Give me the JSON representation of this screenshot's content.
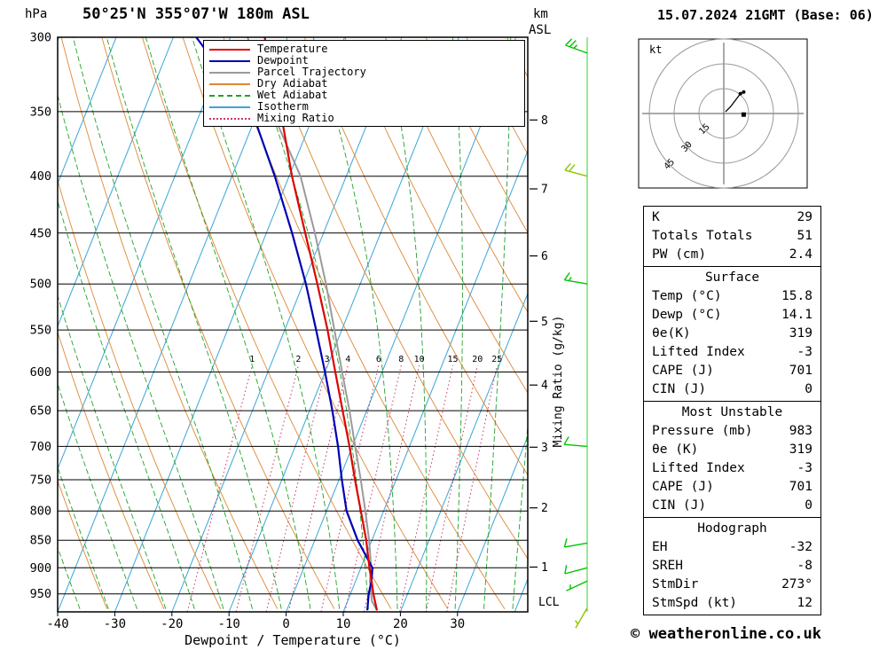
{
  "header": {
    "pressure_unit": "hPa",
    "station": "50°25'N 355°07'W 180m ASL",
    "km_label": "km",
    "asl_label": "ASL",
    "datetime": "15.07.2024 21GMT (Base: 06)"
  },
  "footer": {
    "credit": "© weatheronline.co.uk"
  },
  "axes": {
    "xlabel": "Dewpoint / Temperature (°C)",
    "mixing_ratio_axis_label": "Mixing Ratio (g/kg)",
    "lcl_label": "LCL",
    "pressure_ticks": [
      300,
      350,
      400,
      450,
      500,
      550,
      600,
      650,
      700,
      750,
      800,
      850,
      900,
      950
    ],
    "temp_ticks": [
      -40,
      -30,
      -20,
      -10,
      0,
      10,
      20,
      30
    ],
    "km_ticks": [
      8,
      7,
      6,
      5,
      4,
      3,
      2,
      1
    ]
  },
  "legend": [
    {
      "label": "Temperature",
      "color": "#e00000",
      "style": "solid"
    },
    {
      "label": "Dewpoint",
      "color": "#0000b4",
      "style": "solid"
    },
    {
      "label": "Parcel Trajectory",
      "color": "#9a9a9a",
      "style": "solid"
    },
    {
      "label": "Dry Adiabat",
      "color": "#dd8833",
      "style": "solid"
    },
    {
      "label": "Wet Adiabat",
      "color": "#1ea32a",
      "style": "dashed"
    },
    {
      "label": "Isotherm",
      "color": "#3aa6d6",
      "style": "solid"
    },
    {
      "label": "Mixing Ratio",
      "color": "#cc3366",
      "style": "dotted"
    }
  ],
  "chart_data": {
    "type": "skewt-logp",
    "pressure_range": [
      300,
      986
    ],
    "temp_axis": {
      "min": -40,
      "max": 42.3,
      "label_step": 10
    },
    "skew": 0.4,
    "isotherms_C": {
      "min": -140,
      "max": 40,
      "step": 10
    },
    "dry_adiabats_theta_K": {
      "min": 233,
      "max": 443,
      "step": 10
    },
    "wet_adiabats_start_C": {
      "min": -40,
      "max": 40,
      "step": 5
    },
    "mixing_ratio_lines_gkg": [
      1,
      2,
      3,
      4,
      6,
      8,
      10,
      15,
      20,
      25
    ],
    "colors": {
      "temperature": "#e00000",
      "dewpoint": "#0000b4",
      "parcel": "#9a9a9a",
      "dry_adiabat": "#dd8833",
      "wet_adiabat": "#1ea32a",
      "isotherm": "#3aa6d6",
      "mixing_ratio": "#cc3366",
      "isobar": "#000000",
      "wind_barb": "#00c400"
    },
    "temperature_profile": [
      {
        "p": 983,
        "t": 15.8
      },
      {
        "p": 950,
        "t": 14.0
      },
      {
        "p": 925,
        "t": 12.8
      },
      {
        "p": 900,
        "t": 11.5
      },
      {
        "p": 850,
        "t": 9.0
      },
      {
        "p": 800,
        "t": 6.0
      },
      {
        "p": 750,
        "t": 2.8
      },
      {
        "p": 700,
        "t": -0.5
      },
      {
        "p": 650,
        "t": -4.2
      },
      {
        "p": 600,
        "t": -8.2
      },
      {
        "p": 550,
        "t": -12.5
      },
      {
        "p": 500,
        "t": -17.5
      },
      {
        "p": 450,
        "t": -23.2
      },
      {
        "p": 400,
        "t": -29.5
      },
      {
        "p": 350,
        "t": -36.0
      },
      {
        "p": 300,
        "t": -44.0
      }
    ],
    "dewpoint_profile": [
      {
        "p": 983,
        "t": 14.1
      },
      {
        "p": 950,
        "t": 13.2
      },
      {
        "p": 925,
        "t": 12.8
      },
      {
        "p": 900,
        "t": 12.0
      },
      {
        "p": 850,
        "t": 7.5
      },
      {
        "p": 800,
        "t": 3.5
      },
      {
        "p": 750,
        "t": 0.5
      },
      {
        "p": 700,
        "t": -2.5
      },
      {
        "p": 650,
        "t": -6.0
      },
      {
        "p": 600,
        "t": -10.0
      },
      {
        "p": 550,
        "t": -14.5
      },
      {
        "p": 500,
        "t": -19.5
      },
      {
        "p": 450,
        "t": -25.5
      },
      {
        "p": 400,
        "t": -32.5
      },
      {
        "p": 350,
        "t": -41.0
      },
      {
        "p": 300,
        "t": -56.0
      }
    ],
    "parcel_profile": [
      {
        "p": 983,
        "t": 15.8
      },
      {
        "p": 965,
        "t": 14.3
      },
      {
        "p": 925,
        "t": 12.5
      },
      {
        "p": 900,
        "t": 11.8
      },
      {
        "p": 850,
        "t": 9.5
      },
      {
        "p": 800,
        "t": 6.8
      },
      {
        "p": 750,
        "t": 3.8
      },
      {
        "p": 700,
        "t": 0.5
      },
      {
        "p": 650,
        "t": -3.0
      },
      {
        "p": 600,
        "t": -7.0
      },
      {
        "p": 550,
        "t": -11.3
      },
      {
        "p": 500,
        "t": -16.0
      },
      {
        "p": 450,
        "t": -21.5
      },
      {
        "p": 400,
        "t": -28.0
      },
      {
        "p": 350,
        "t": -37.5
      },
      {
        "p": 300,
        "t": -47.0
      }
    ],
    "wind_barbs": [
      {
        "p": 310,
        "speed_kt": 25,
        "dir_deg": 290,
        "color": "#00c400"
      },
      {
        "p": 400,
        "speed_kt": 20,
        "dir_deg": 285,
        "color": "#8fc400"
      },
      {
        "p": 500,
        "speed_kt": 15,
        "dir_deg": 280,
        "color": "#00c400"
      },
      {
        "p": 700,
        "speed_kt": 10,
        "dir_deg": 275,
        "color": "#00c400"
      },
      {
        "p": 855,
        "speed_kt": 10,
        "dir_deg": 260,
        "color": "#00c400"
      },
      {
        "p": 900,
        "speed_kt": 10,
        "dir_deg": 255,
        "color": "#00c400"
      },
      {
        "p": 925,
        "speed_kt": 5,
        "dir_deg": 245,
        "color": "#00c400"
      },
      {
        "p": 978,
        "speed_kt": 8,
        "dir_deg": 210,
        "color": "#8fc400"
      }
    ]
  },
  "hodograph": {
    "unit_label": "kt",
    "ring_radii_kt": [
      15,
      30,
      45
    ],
    "trace_uv_kt": [
      [
        1,
        1
      ],
      [
        4,
        4
      ],
      [
        7,
        8
      ],
      [
        10,
        12
      ],
      [
        12,
        13
      ]
    ],
    "trace_dot_indices": [
      3,
      4
    ],
    "storm_motion": {
      "dir_deg": 273,
      "speed_kt": 12
    }
  },
  "tables": [
    {
      "title": "",
      "rows": [
        [
          "K",
          "29"
        ],
        [
          "Totals Totals",
          "51"
        ],
        [
          "PW (cm)",
          "2.4"
        ]
      ]
    },
    {
      "title": "Surface",
      "rows": [
        [
          "Temp (°C)",
          "15.8"
        ],
        [
          "Dewp (°C)",
          "14.1"
        ],
        [
          "θe(K)",
          "319"
        ],
        [
          "Lifted Index",
          "-3"
        ],
        [
          "CAPE (J)",
          "701"
        ],
        [
          "CIN (J)",
          "0"
        ]
      ]
    },
    {
      "title": "Most Unstable",
      "rows": [
        [
          "Pressure (mb)",
          "983"
        ],
        [
          "θe (K)",
          "319"
        ],
        [
          "Lifted Index",
          "-3"
        ],
        [
          "CAPE (J)",
          "701"
        ],
        [
          "CIN (J)",
          "0"
        ]
      ]
    },
    {
      "title": "Hodograph",
      "rows": [
        [
          "EH",
          "-32"
        ],
        [
          "SREH",
          "-8"
        ],
        [
          "StmDir",
          "273°"
        ],
        [
          "StmSpd (kt)",
          "12"
        ]
      ]
    }
  ]
}
